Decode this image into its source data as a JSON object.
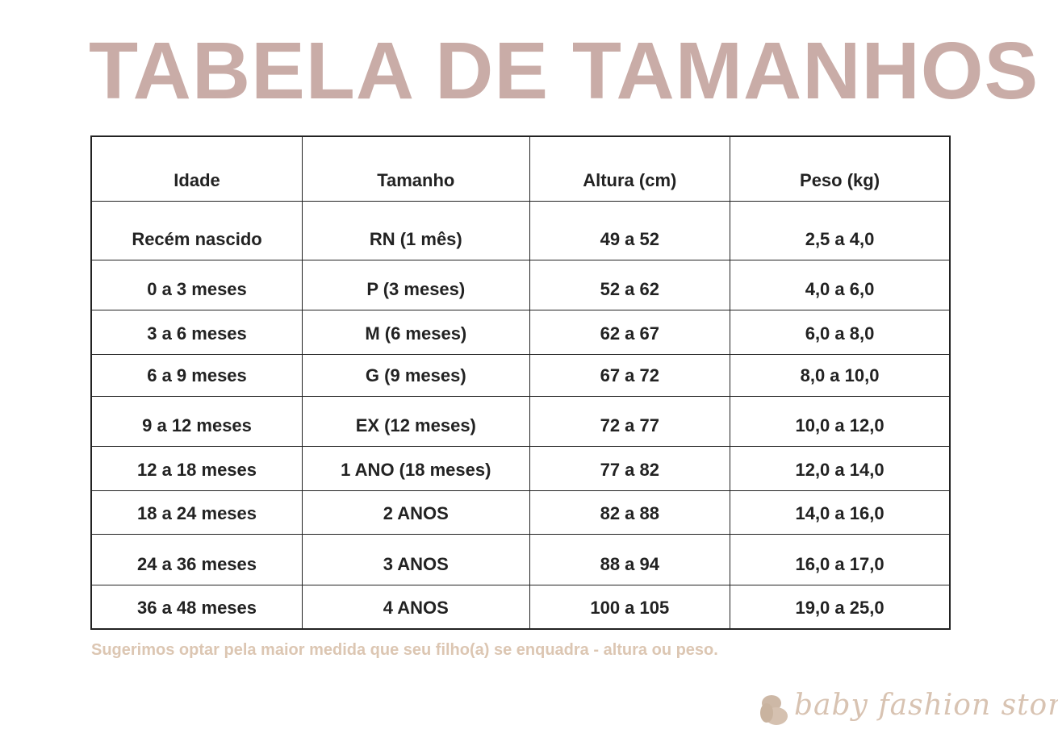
{
  "title": "TABELA DE TAMANHOS",
  "table": {
    "headers": [
      "Idade",
      "Tamanho",
      "Altura (cm)",
      "Peso (kg)"
    ],
    "rows": [
      [
        "Recém nascido",
        "RN (1 mês)",
        "49 a 52",
        "2,5 a 4,0"
      ],
      [
        "0 a 3 meses",
        "P  (3  meses)",
        "52 a 62",
        "4,0 a 6,0"
      ],
      [
        "3 a 6 meses",
        "M (6 meses)",
        "62 a 67",
        "6,0 a 8,0"
      ],
      [
        "6 a 9 meses",
        "G (9 meses)",
        "67 a 72",
        "8,0 a 10,0"
      ],
      [
        "9 a 12 meses",
        "EX (12 meses)",
        "72 a 77",
        "10,0 a 12,0"
      ],
      [
        "12 a 18 meses",
        "1 ANO (18 meses)",
        "77 a 82",
        "12,0 a 14,0"
      ],
      [
        "18 a 24 meses",
        "2 ANOS",
        "82 a 88",
        "14,0 a 16,0"
      ],
      [
        "24 a 36 meses",
        "3  ANOS",
        "88 a 94",
        "16,0 a 17,0"
      ],
      [
        "36 a 48 meses",
        "4 ANOS",
        "100 a 105",
        "19,0 a 25,0"
      ]
    ]
  },
  "note": "Sugerimos optar pela maior medida que seu  filho(a) se enquadra - altura ou peso.",
  "logo": {
    "text": "baby fashion store",
    "icon": "butterfly-icon"
  },
  "colors": {
    "title": "#c9aca7",
    "note": "#dcc6b2",
    "logo": "#d8c3b2",
    "border": "#222222"
  }
}
